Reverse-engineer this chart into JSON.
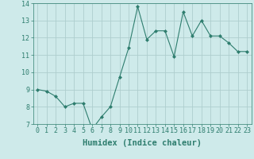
{
  "x": [
    0,
    1,
    2,
    3,
    4,
    5,
    6,
    7,
    8,
    9,
    10,
    11,
    12,
    13,
    14,
    15,
    16,
    17,
    18,
    19,
    20,
    21,
    22,
    23
  ],
  "y": [
    9.0,
    8.9,
    8.6,
    8.0,
    8.2,
    8.2,
    6.7,
    7.4,
    8.0,
    9.7,
    11.4,
    13.8,
    11.9,
    12.4,
    12.4,
    10.9,
    13.5,
    12.1,
    13.0,
    12.1,
    12.1,
    11.7,
    11.2,
    11.2
  ],
  "line_color": "#2e7d6e",
  "marker": "D",
  "marker_size": 2,
  "bg_color": "#ceeaea",
  "grid_color": "#aecece",
  "xlabel": "Humidex (Indice chaleur)",
  "ylim": [
    7,
    14
  ],
  "xlim": [
    -0.5,
    23.5
  ],
  "yticks": [
    7,
    8,
    9,
    10,
    11,
    12,
    13,
    14
  ],
  "xticks": [
    0,
    1,
    2,
    3,
    4,
    5,
    6,
    7,
    8,
    9,
    10,
    11,
    12,
    13,
    14,
    15,
    16,
    17,
    18,
    19,
    20,
    21,
    22,
    23
  ],
  "tick_fontsize": 6.0,
  "xlabel_fontsize": 7.5
}
